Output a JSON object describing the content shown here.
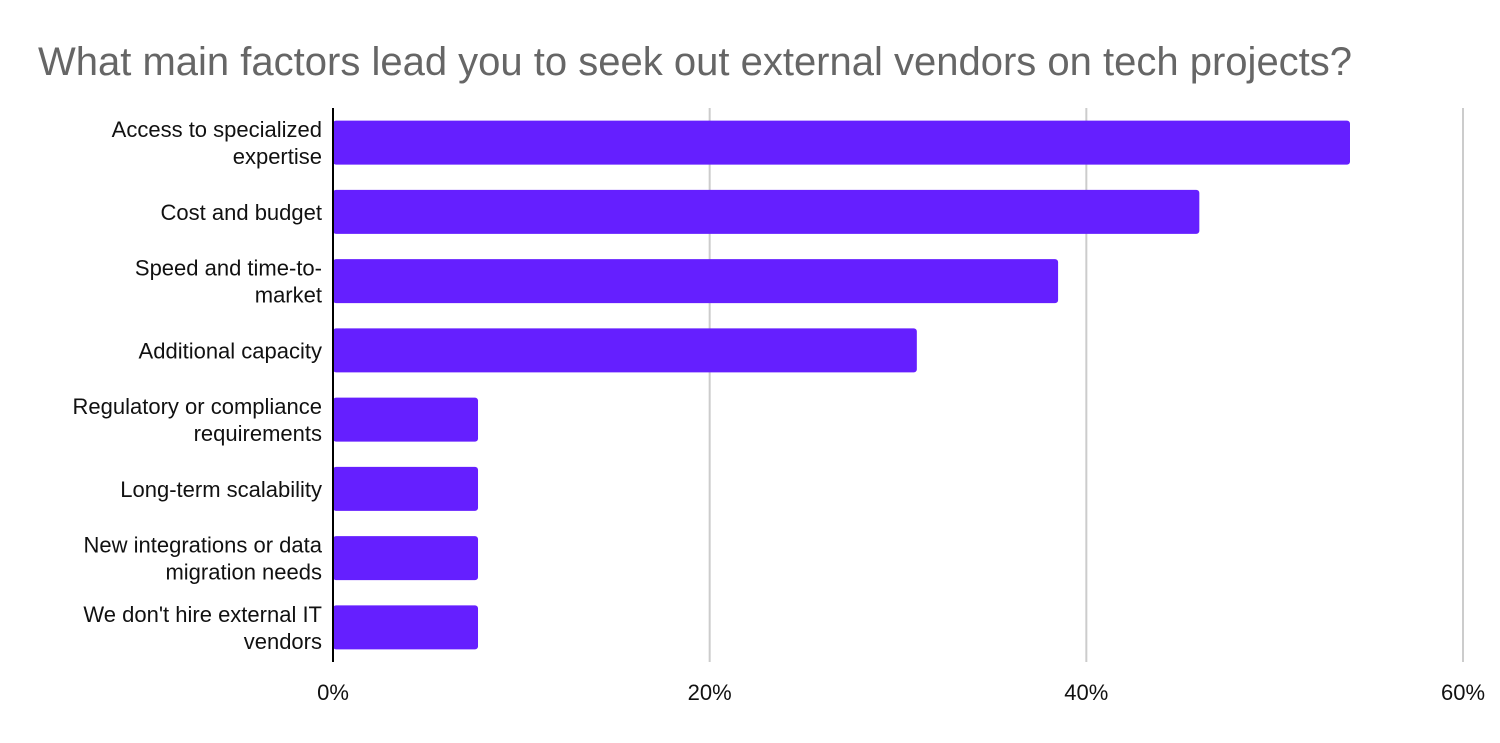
{
  "chart_data": {
    "type": "bar",
    "orientation": "horizontal",
    "title": "What main factors lead you to seek out external vendors on tech projects?",
    "xlabel": "",
    "ylabel": "",
    "categories": [
      [
        "Access to specialized",
        "expertise"
      ],
      [
        "Cost and budget"
      ],
      [
        "Speed and time-to-",
        "market"
      ],
      [
        "Additional capacity"
      ],
      [
        "Regulatory or compliance",
        "requirements"
      ],
      [
        "Long-term scalability"
      ],
      [
        "New integrations or data",
        "migration needs"
      ],
      [
        "We don't hire external IT",
        "vendors"
      ]
    ],
    "values": [
      54,
      46,
      38.5,
      31,
      7.7,
      7.7,
      7.7,
      7.7
    ],
    "xlim": [
      0,
      60
    ],
    "xticks": [
      0,
      20,
      40,
      60
    ],
    "tick_suffix": "%",
    "grid": "vertical",
    "legend": "none",
    "bar_color": "#651fff",
    "grid_color": "#cccccc",
    "axis_color": "#000000"
  }
}
